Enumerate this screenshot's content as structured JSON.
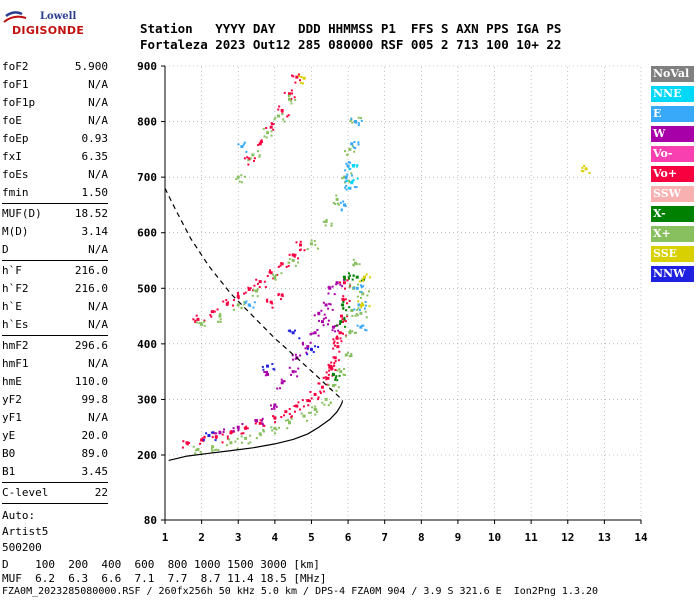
{
  "logo": {
    "line1": "Lowell",
    "line2": "DIGISONDE"
  },
  "header": {
    "row1": "Station   YYYY DAY   DDD HHMMSS P1  FFS S AXN PPS IGA PS",
    "row2": "Fortaleza 2023 Out12 285 080000 RSF 005 2 713 100 10+ 22"
  },
  "params_group1": [
    {
      "name": "foF2",
      "value": "5.900"
    },
    {
      "name": "foF1",
      "value": "N/A"
    },
    {
      "name": "foF1p",
      "value": "N/A"
    },
    {
      "name": "foE",
      "value": "N/A"
    },
    {
      "name": "foEp",
      "value": "0.93"
    },
    {
      "name": "fxI",
      "value": "6.35"
    },
    {
      "name": "foEs",
      "value": "N/A"
    },
    {
      "name": "fmin",
      "value": "1.50"
    }
  ],
  "params_group2": [
    {
      "name": "MUF(D)",
      "value": "18.52"
    },
    {
      "name": "M(D)",
      "value": "3.14"
    },
    {
      "name": "D",
      "value": "N/A"
    }
  ],
  "params_group3": [
    {
      "name": "h`F",
      "value": "216.0"
    },
    {
      "name": "h`F2",
      "value": "216.0"
    },
    {
      "name": "h`E",
      "value": "N/A"
    },
    {
      "name": "h`Es",
      "value": "N/A"
    }
  ],
  "params_group4": [
    {
      "name": "hmF2",
      "value": "296.6"
    },
    {
      "name": "hmF1",
      "value": "N/A"
    },
    {
      "name": "hmE",
      "value": "110.0"
    },
    {
      "name": "yF2",
      "value": "99.8"
    },
    {
      "name": "yF1",
      "value": "N/A"
    },
    {
      "name": "yE",
      "value": "20.0"
    },
    {
      "name": "B0",
      "value": "89.0"
    },
    {
      "name": "B1",
      "value": "3.45"
    }
  ],
  "params_group5": [
    {
      "name": "C-level",
      "value": "22"
    }
  ],
  "autoscaling": [
    "Auto:",
    "Artist5",
    "500200"
  ],
  "legend": [
    {
      "label": "NoVal",
      "color": "#808080"
    },
    {
      "label": "NNE",
      "color": "#00d8f8"
    },
    {
      "label": "E",
      "color": "#38a8f8"
    },
    {
      "label": "W",
      "color": "#a800a8"
    },
    {
      "label": "Vo-",
      "color": "#f840b0"
    },
    {
      "label": "Vo+",
      "color": "#f80040"
    },
    {
      "label": "SSW",
      "color": "#f8b0b0"
    },
    {
      "label": "X-",
      "color": "#008000"
    },
    {
      "label": "X+",
      "color": "#88c060"
    },
    {
      "label": "SSE",
      "color": "#d8d000"
    },
    {
      "label": "NNW",
      "color": "#2020e0"
    }
  ],
  "bottom": {
    "row1": "D    100  200  400  600  800 1000 1500 3000 [km]",
    "row2": "MUF  6.2  6.3  6.6  7.1  7.7  8.7 11.4 18.5 [MHz]"
  },
  "footer": "FZA0M_2023285080000.RSF / 260fx256h 50 kHz 5.0 km / DPS-4 FZA0M 904 / 3.9 S 321.6 E  Ion2Png 1.3.20",
  "chart_data": {
    "type": "scatter",
    "xlim": [
      1,
      14
    ],
    "ylim": [
      80,
      900
    ],
    "xticks": [
      1,
      2,
      3,
      4,
      5,
      6,
      7,
      8,
      9,
      10,
      11,
      12,
      13,
      14
    ],
    "yticks": [
      80,
      200,
      300,
      400,
      500,
      600,
      700,
      800,
      900
    ],
    "series": [
      {
        "name": "Vo+",
        "color": "#f80040",
        "points": [
          [
            1.6,
            222
          ],
          [
            2.0,
            227
          ],
          [
            2.4,
            233
          ],
          [
            2.8,
            240
          ],
          [
            3.2,
            248
          ],
          [
            3.6,
            257
          ],
          [
            4.0,
            267
          ],
          [
            4.3,
            278
          ],
          [
            4.6,
            288
          ],
          [
            4.9,
            298
          ],
          [
            5.1,
            309
          ],
          [
            5.3,
            322
          ],
          [
            5.45,
            338
          ],
          [
            5.55,
            355
          ],
          [
            5.65,
            375
          ],
          [
            5.72,
            395
          ],
          [
            5.78,
            420
          ],
          [
            5.82,
            450
          ],
          [
            5.86,
            480
          ],
          [
            5.9,
            510
          ],
          [
            1.9,
            444
          ],
          [
            2.3,
            458
          ],
          [
            2.7,
            472
          ],
          [
            3.0,
            485
          ],
          [
            3.3,
            498
          ],
          [
            3.6,
            512
          ],
          [
            3.9,
            528
          ],
          [
            4.2,
            544
          ],
          [
            4.5,
            560
          ],
          [
            4.7,
            578
          ],
          [
            3.3,
            733
          ],
          [
            3.6,
            760
          ],
          [
            3.9,
            790
          ],
          [
            4.2,
            820
          ],
          [
            4.4,
            850
          ],
          [
            4.6,
            880
          ],
          [
            3.9,
            475
          ],
          [
            4.2,
            488
          ],
          [
            5.5,
            358
          ],
          [
            5.7,
            410
          ]
        ]
      },
      {
        "name": "W",
        "color": "#a800a8",
        "points": [
          [
            2.5,
            240
          ],
          [
            3.0,
            250
          ],
          [
            3.5,
            262
          ],
          [
            4.0,
            290
          ],
          [
            4.2,
            330
          ],
          [
            4.5,
            350
          ],
          [
            4.9,
            395
          ],
          [
            5.1,
            420
          ],
          [
            5.3,
            440
          ],
          [
            5.4,
            470
          ],
          [
            5.5,
            500
          ],
          [
            5.6,
            430
          ],
          [
            5.7,
            510
          ],
          [
            3.8,
            345
          ],
          [
            4.6,
            375
          ],
          [
            5.2,
            455
          ]
        ]
      },
      {
        "name": "X+",
        "color": "#88c060",
        "points": [
          [
            1.9,
            210
          ],
          [
            2.3,
            215
          ],
          [
            2.8,
            222
          ],
          [
            3.2,
            230
          ],
          [
            3.6,
            238
          ],
          [
            4.0,
            248
          ],
          [
            4.4,
            258
          ],
          [
            4.8,
            270
          ],
          [
            5.1,
            282
          ],
          [
            5.4,
            300
          ],
          [
            5.6,
            325
          ],
          [
            5.8,
            350
          ],
          [
            5.95,
            380
          ],
          [
            6.05,
            420
          ],
          [
            6.1,
            460
          ],
          [
            6.15,
            500
          ],
          [
            6.2,
            545
          ],
          [
            2.0,
            435
          ],
          [
            2.5,
            450
          ],
          [
            3.0,
            470
          ],
          [
            3.5,
            495
          ],
          [
            4.0,
            520
          ],
          [
            4.5,
            550
          ],
          [
            5.0,
            580
          ],
          [
            5.4,
            620
          ],
          [
            5.7,
            660
          ],
          [
            5.9,
            700
          ],
          [
            6.05,
            750
          ],
          [
            6.2,
            800
          ],
          [
            3.0,
            700
          ],
          [
            3.4,
            740
          ],
          [
            3.8,
            780
          ],
          [
            4.1,
            810
          ],
          [
            4.4,
            840
          ],
          [
            6.35,
            455
          ],
          [
            6.4,
            490
          ]
        ]
      },
      {
        "name": "E",
        "color": "#38a8f8",
        "points": [
          [
            6.3,
            470
          ],
          [
            6.35,
            430
          ],
          [
            6.25,
            500
          ],
          [
            5.95,
            700
          ],
          [
            6.0,
            720
          ],
          [
            6.05,
            680
          ],
          [
            5.9,
            650
          ],
          [
            6.1,
            760
          ],
          [
            6.2,
            800
          ],
          [
            3.3,
            470
          ],
          [
            3.1,
            755
          ]
        ]
      },
      {
        "name": "X-",
        "color": "#008000",
        "points": [
          [
            5.85,
            470
          ],
          [
            5.9,
            520
          ],
          [
            5.8,
            440
          ],
          [
            6.25,
            520
          ],
          [
            5.6,
            345
          ]
        ]
      },
      {
        "name": "SSE",
        "color": "#d8d000",
        "points": [
          [
            12.5,
            715
          ],
          [
            6.45,
            520
          ],
          [
            4.8,
            878
          ],
          [
            6.4,
            470
          ]
        ]
      },
      {
        "name": "NNW",
        "color": "#2020e0",
        "points": [
          [
            5.0,
            390
          ],
          [
            4.5,
            420
          ],
          [
            3.8,
            360
          ],
          [
            2.2,
            235
          ]
        ]
      },
      {
        "name": "NNE",
        "color": "#00d8f8",
        "points": [
          [
            6.1,
            690
          ],
          [
            6.15,
            720
          ]
        ]
      }
    ],
    "profile_solid": [
      [
        1.1,
        190
      ],
      [
        1.6,
        198
      ],
      [
        2.2,
        203
      ],
      [
        2.8,
        208
      ],
      [
        3.4,
        213
      ],
      [
        4.0,
        220
      ],
      [
        4.5,
        228
      ],
      [
        4.9,
        238
      ],
      [
        5.2,
        250
      ],
      [
        5.5,
        264
      ],
      [
        5.7,
        278
      ],
      [
        5.8,
        289
      ],
      [
        5.85,
        296.6
      ]
    ],
    "profile_dashed": [
      [
        1.0,
        680
      ],
      [
        1.3,
        640
      ],
      [
        1.7,
        590
      ],
      [
        2.2,
        540
      ],
      [
        2.8,
        490
      ],
      [
        3.4,
        450
      ],
      [
        4.0,
        410
      ],
      [
        4.6,
        375
      ],
      [
        5.1,
        345
      ],
      [
        5.5,
        320
      ],
      [
        5.75,
        305
      ],
      [
        5.85,
        296.6
      ]
    ]
  }
}
